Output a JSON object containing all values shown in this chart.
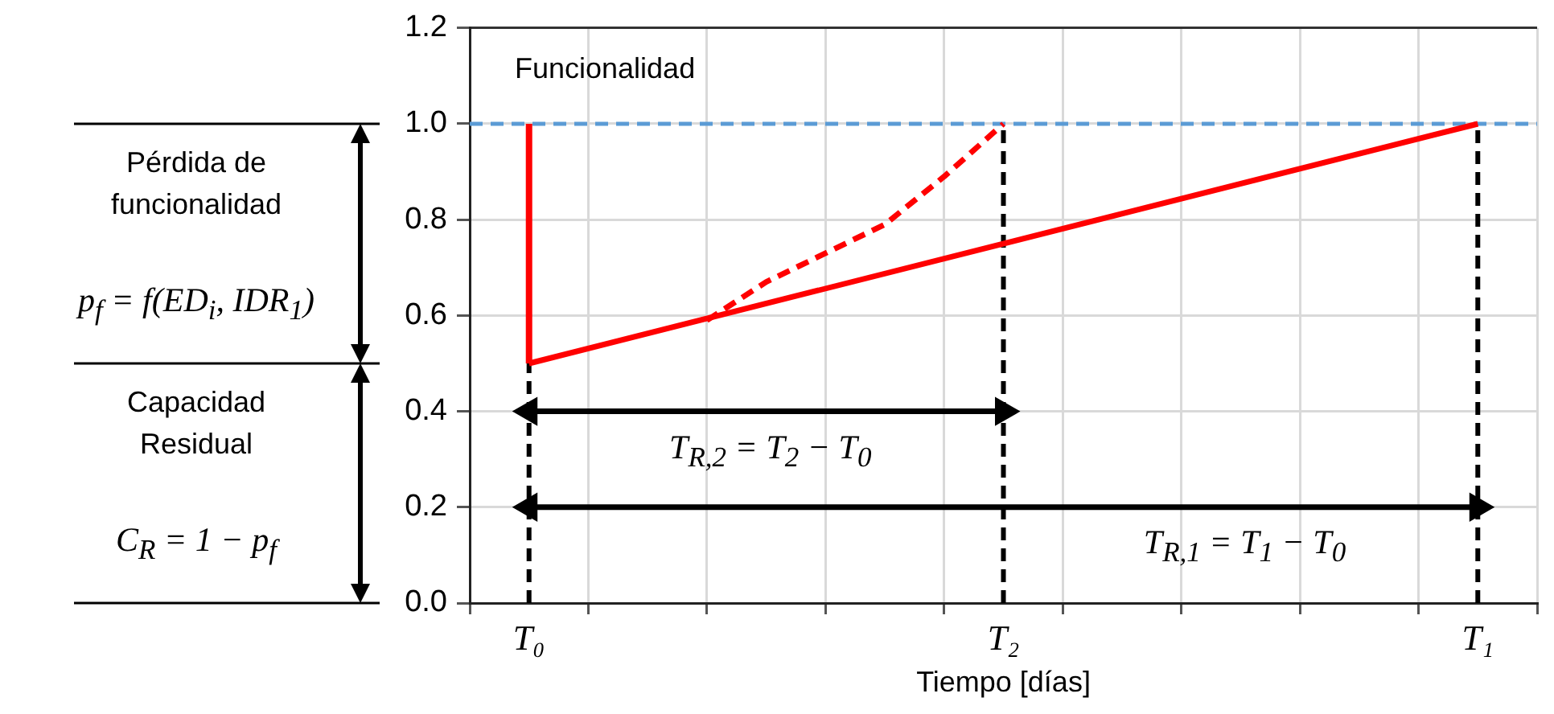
{
  "chart_data": {
    "type": "line",
    "ylabel": "Funcionalidad",
    "xlabel": "Tiempo [días]",
    "categories": [
      null,
      "T₀",
      null,
      null,
      null,
      null,
      null,
      null,
      null,
      "T₂",
      null,
      null,
      null,
      null,
      null,
      null,
      null,
      "T₁",
      null
    ],
    "ylim": [
      0,
      1.2
    ],
    "yticks": [
      {
        "value": 0,
        "label": "0.0"
      },
      {
        "value": 0.2,
        "label": "0.2"
      },
      {
        "value": 0.4,
        "label": "0.4"
      },
      {
        "value": 0.6,
        "label": "0.6"
      },
      {
        "value": 0.8,
        "label": "0.8"
      },
      {
        "value": 1,
        "label": "1.0"
      },
      {
        "value": 1.2,
        "label": "1.2"
      }
    ],
    "grid": true,
    "legend": false,
    "series": [
      {
        "color": "#ff0000",
        "values": [
          null,
          0.5,
          null,
          null,
          null,
          null,
          null,
          null,
          null,
          null,
          null,
          null,
          null,
          null,
          null,
          null,
          null,
          1.0,
          null
        ],
        "errors": [
          null,
          [
            0.5,
            1.0
          ],
          null,
          null,
          null,
          null,
          null,
          null,
          null,
          null,
          null,
          null,
          null,
          null,
          null,
          null,
          null,
          null,
          null
        ],
        "line_style": "solid",
        "marker": "none"
      },
      {
        "color": "#ff0000",
        "values": [
          null,
          null,
          null,
          null,
          0.59,
          0.67,
          0.73,
          0.79,
          0.89,
          1.0,
          null,
          null,
          null,
          null,
          null,
          null,
          null,
          null,
          null
        ],
        "line_style": "dashed",
        "marker": "none"
      },
      {
        "color": "#000000",
        "values": [
          null,
          0.4,
          null,
          null,
          null,
          null,
          null,
          null,
          null,
          0.4,
          null,
          null,
          null,
          null,
          null,
          null,
          null,
          null,
          null
        ],
        "line_style": "solid",
        "marker": "triangle"
      },
      {
        "color": "#000000",
        "values": [
          null,
          0.2,
          null,
          null,
          null,
          null,
          null,
          null,
          null,
          null,
          null,
          null,
          null,
          null,
          null,
          null,
          null,
          0.2,
          null
        ],
        "line_style": "solid",
        "marker": "triangle"
      }
    ],
    "ref_lines": [
      {
        "axis": "y",
        "value": 1.0,
        "color": "#5b9bd5",
        "line_style": "dashed"
      },
      {
        "axis": "x",
        "value": "T₀",
        "color": "#000000",
        "line_style": "dashed"
      },
      {
        "axis": "x",
        "value": "T₂",
        "color": "#000000",
        "line_style": "dashed"
      },
      {
        "axis": "x",
        "value": "T₁",
        "color": "#000000",
        "line_style": "dashed"
      }
    ],
    "annotations": [
      "Pérdida de funcionalidad",
      "p$_{f}$ = f(ED$_{i}$, IDR$_{1}$)",
      "Capacidad Residual",
      "C$_{R}$ = 1 − p$_{f}$",
      "T$_{R,2}$ = T$_{2}$ − T$_{0}$",
      "T$_{R,1}$ = T$_{1}$ − T$_{0}$"
    ]
  }
}
